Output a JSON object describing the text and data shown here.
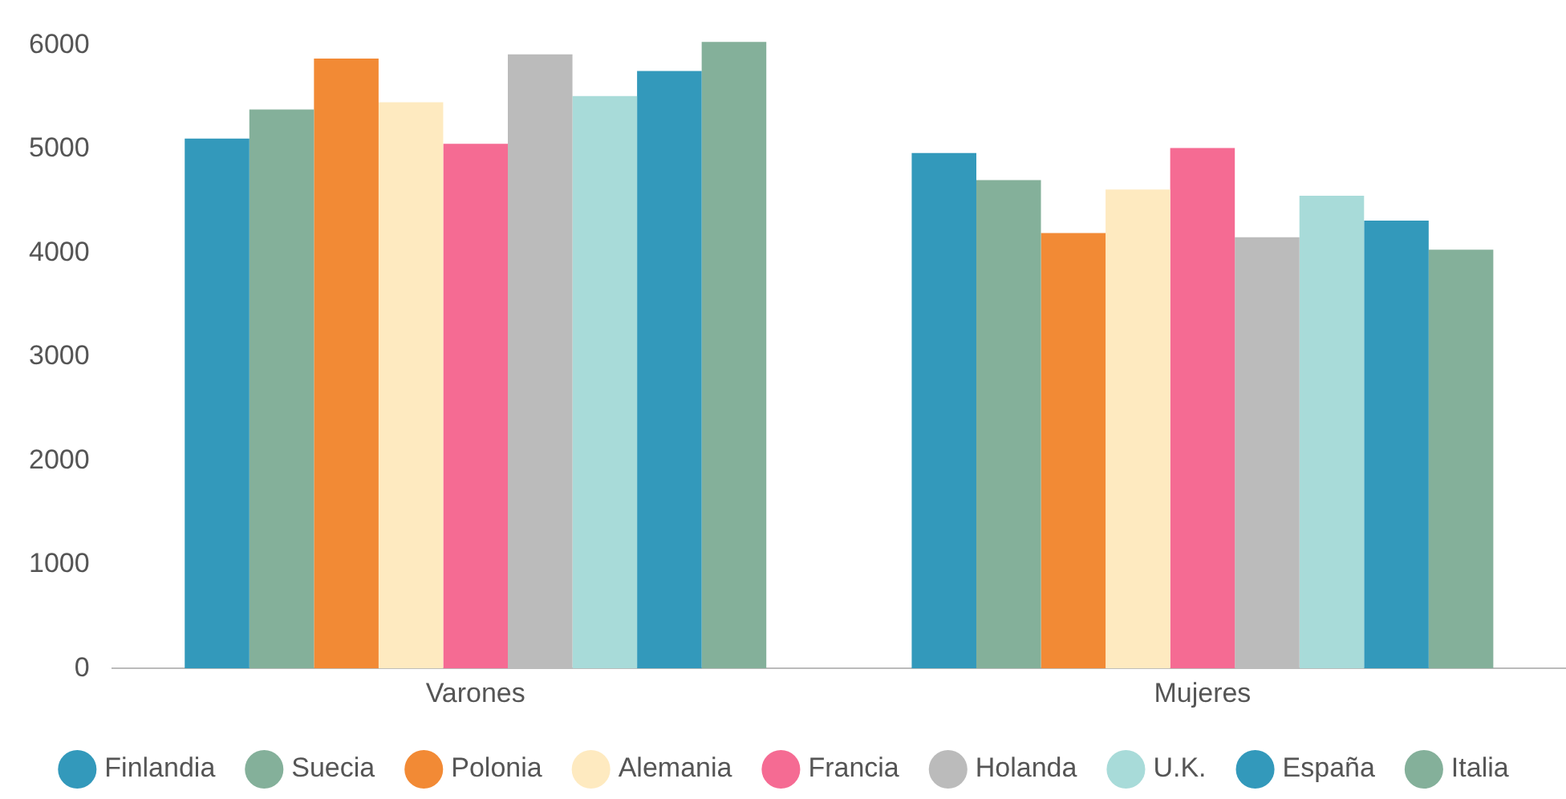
{
  "chart_data": {
    "type": "bar",
    "categories": [
      "Varones",
      "Mujeres"
    ],
    "series": [
      {
        "name": "Finlandia",
        "color": "#3399bb",
        "values": [
          5100,
          4960
        ]
      },
      {
        "name": "Suecia",
        "color": "#84b09a",
        "values": [
          5380,
          4700
        ]
      },
      {
        "name": "Polonia",
        "color": "#f28a35",
        "values": [
          5870,
          4190
        ]
      },
      {
        "name": "Alemania",
        "color": "#feeac0",
        "values": [
          5450,
          4610
        ]
      },
      {
        "name": "Francia",
        "color": "#f56b93",
        "values": [
          5050,
          5010
        ]
      },
      {
        "name": "Holanda",
        "color": "#bbbbbb",
        "values": [
          5910,
          4150
        ]
      },
      {
        "name": "U.K.",
        "color": "#a8dbd9",
        "values": [
          5510,
          4550
        ]
      },
      {
        "name": "España",
        "color": "#3399bb",
        "values": [
          5750,
          4310
        ]
      },
      {
        "name": "Italia",
        "color": "#84b09a",
        "values": [
          6030,
          4030
        ]
      }
    ],
    "ylim": [
      0,
      6060
    ],
    "yticks": [
      0,
      1000,
      2000,
      3000,
      4000,
      5000,
      6000
    ],
    "grid": false,
    "legend": "bottom"
  }
}
